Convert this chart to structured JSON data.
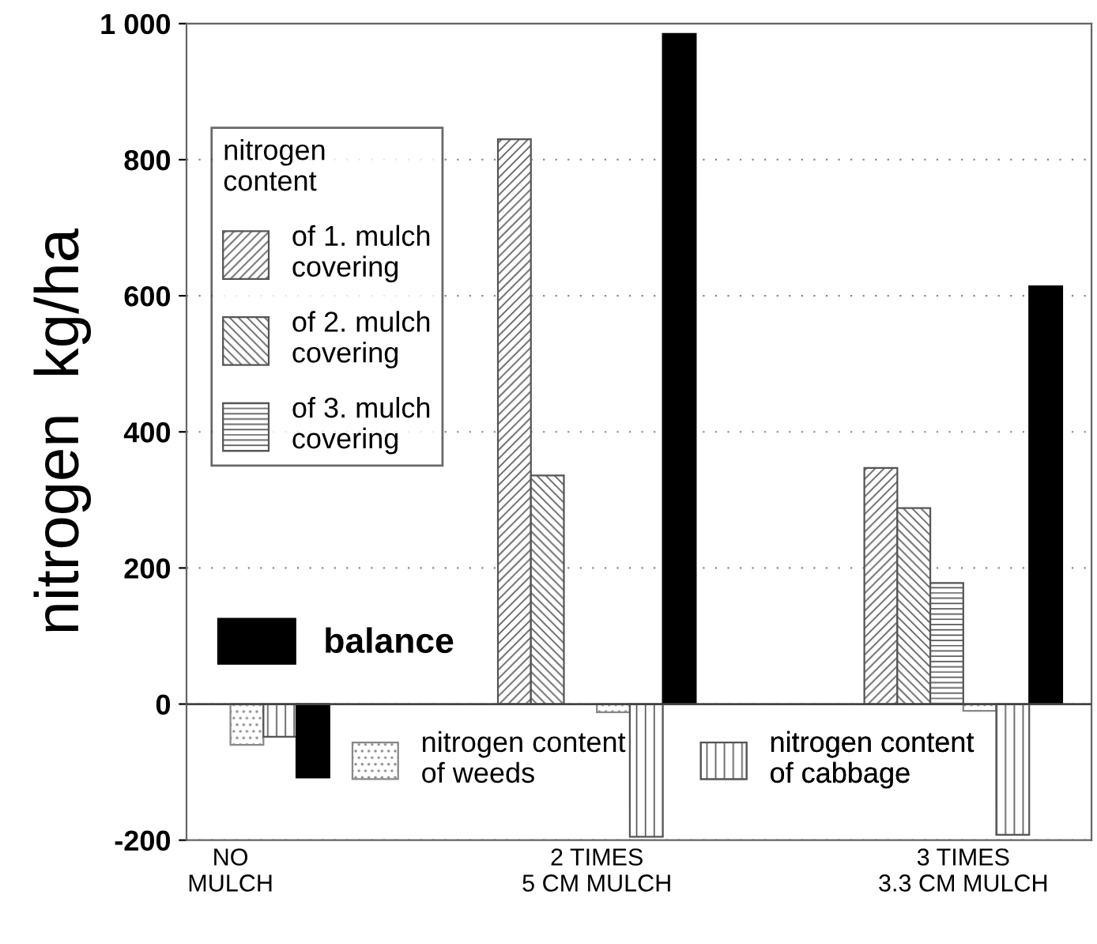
{
  "chart_data": {
    "type": "bar",
    "ylabel": "nitrogen  kg/ha",
    "legend_title": "nitrogen content",
    "categories": [
      "NO\nMULCH",
      "2 TIMES\n5 CM MULCH",
      "3 TIMES\n3.3 CM MULCH"
    ],
    "series": [
      {
        "name": "of 1. mulch covering",
        "color": "#555555",
        "values": [
          null,
          830,
          347
        ]
      },
      {
        "name": "of 2. mulch covering",
        "color": "#555555",
        "values": [
          null,
          336,
          288
        ]
      },
      {
        "name": "of 3. mulch covering",
        "color": "#555555",
        "values": [
          null,
          null,
          178
        ]
      },
      {
        "name": "nitrogen content of weeds",
        "color": "#888888",
        "values": [
          -60,
          -12,
          -10
        ]
      },
      {
        "name": "nitrogen content of cabbage",
        "color": "#555555",
        "values": [
          -48,
          -195,
          -192
        ]
      },
      {
        "name": "balance",
        "color": "#000000",
        "values": [
          -108,
          985,
          614
        ]
      }
    ],
    "ylim": [
      -200,
      1000
    ],
    "yticks": [
      -200,
      0,
      200,
      400,
      600,
      800,
      {
        "value": 1000,
        "label": "1 000"
      }
    ],
    "ref_lines": [
      {
        "axis": "y",
        "value": 0
      }
    ],
    "grid": "y",
    "legend": "left"
  }
}
